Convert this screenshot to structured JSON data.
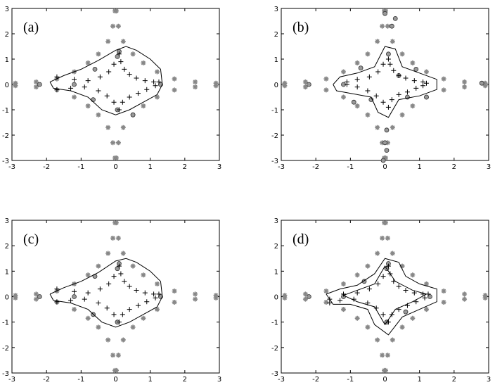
{
  "chart_data": [
    {
      "type": "scatter",
      "label": "(a)",
      "xlim": [
        -3,
        3
      ],
      "ylim": [
        -3,
        3
      ],
      "xticks": [
        -3,
        -2,
        -1,
        0,
        1,
        2,
        3
      ],
      "yticks": [
        -3,
        -2,
        -1,
        0,
        1,
        2,
        3
      ],
      "series": [
        {
          "marker": "star",
          "color": "#888888",
          "x": [
            2.9,
            2.3,
            1.7,
            1.2,
            0.8,
            0.5,
            0.22,
            0.08,
            0.02,
            -2.9,
            -2.3,
            -1.7,
            -1.2,
            -0.8,
            -0.5,
            -0.22,
            -0.08,
            -0.02,
            -2.9,
            -2.3,
            -1.7,
            -1.2,
            -0.8,
            -0.5,
            -0.22,
            -0.08,
            -0.02,
            2.9,
            2.3,
            1.7,
            1.2,
            0.8,
            0.5,
            0.22,
            0.08,
            0.02
          ],
          "y": [
            0.05,
            0.1,
            0.22,
            0.5,
            0.85,
            1.2,
            1.7,
            2.3,
            2.9,
            0.05,
            0.1,
            0.22,
            0.5,
            0.85,
            1.2,
            1.7,
            2.3,
            2.9,
            -0.05,
            -0.1,
            -0.22,
            -0.5,
            -0.85,
            -1.2,
            -1.7,
            -2.3,
            -2.9,
            -0.05,
            -0.1,
            -0.22,
            -0.5,
            -0.85,
            -1.2,
            -1.7,
            -2.3,
            -2.9
          ]
        },
        {
          "marker": "circle",
          "color": "#999999",
          "x": [
            0.1,
            0.05,
            -1.2,
            -2.2,
            0.05,
            0.5,
            1.3,
            -0.6,
            -0.65
          ],
          "y": [
            1.3,
            1.1,
            0,
            0,
            -1.0,
            -1.2,
            0,
            0.6,
            -0.6
          ]
        },
        {
          "marker": "plus",
          "color": "#000000",
          "x": [
            0.1,
            0.15,
            0.25,
            0.4,
            0.6,
            0.85,
            1.1,
            1.25,
            0.1,
            0.2,
            0.4,
            0.65,
            0.9,
            1.15,
            -0.05,
            -0.2,
            -0.45,
            -0.8,
            -1.2,
            -1.7,
            -0.05,
            -0.25,
            -0.5,
            -0.9,
            -1.3,
            -1.7
          ],
          "y": [
            1.2,
            0.9,
            0.6,
            0.4,
            0.25,
            0.15,
            0.1,
            0.1,
            -1.0,
            -0.7,
            -0.5,
            -0.35,
            -0.2,
            -0.05,
            0.8,
            0.5,
            0.3,
            0.15,
            0.2,
            0.3,
            -0.7,
            -0.45,
            -0.25,
            -0.1,
            -0.15,
            -0.2
          ]
        },
        {
          "marker": "line",
          "color": "#000000",
          "x": [
            -1.9,
            -1.5,
            -1.0,
            -0.5,
            0,
            0.3,
            0.6,
            1.0,
            1.3,
            1.35,
            1.2,
            0.8,
            0.4,
            0,
            -0.4,
            -0.8,
            -1.3,
            -1.8,
            -1.9
          ],
          "y": [
            0.1,
            0.35,
            0.6,
            0.95,
            1.35,
            1.5,
            1.35,
            1.0,
            0.6,
            0,
            -0.4,
            -0.7,
            -1.0,
            -1.2,
            -1.0,
            -0.5,
            -0.25,
            -0.15,
            0.1
          ]
        }
      ]
    },
    {
      "type": "scatter",
      "label": "(b)",
      "xlim": [
        -3,
        3
      ],
      "ylim": [
        -3,
        3
      ],
      "xticks": [
        -3,
        -2,
        -1,
        0,
        1,
        2,
        3
      ],
      "yticks": [
        -3,
        -2,
        -1,
        0,
        1,
        2,
        3
      ],
      "series": [
        {
          "marker": "star",
          "color": "#888888",
          "x": [
            2.9,
            2.3,
            1.7,
            1.2,
            0.8,
            0.5,
            0.22,
            0.08,
            0.02,
            -2.9,
            -2.3,
            -1.7,
            -1.2,
            -0.8,
            -0.5,
            -0.22,
            -0.08,
            -0.02,
            -2.9,
            -2.3,
            -1.7,
            -1.2,
            -0.8,
            -0.5,
            -0.22,
            -0.08,
            -0.02,
            2.9,
            2.3,
            1.7,
            1.2,
            0.8,
            0.5,
            0.22,
            0.08,
            0.02
          ],
          "y": [
            0.05,
            0.1,
            0.22,
            0.5,
            0.85,
            1.2,
            1.7,
            2.3,
            2.9,
            0.05,
            0.1,
            0.22,
            0.5,
            0.85,
            1.2,
            1.7,
            2.3,
            2.9,
            -0.05,
            -0.1,
            -0.22,
            -0.5,
            -0.85,
            -1.2,
            -1.7,
            -2.3,
            -2.9,
            -0.05,
            -0.1,
            -0.22,
            -0.5,
            -0.85,
            -1.2,
            -1.7,
            -2.3,
            -2.9
          ]
        },
        {
          "marker": "circle",
          "color": "#999999",
          "x": [
            0,
            0.3,
            0.2,
            -0.7,
            -0.9,
            -1.2,
            -2.2,
            2.8,
            0.05,
            0,
            0.05,
            -0.05,
            0.9,
            1.2,
            0.65,
            0.4,
            0.1,
            -0.4
          ],
          "y": [
            2.8,
            2.6,
            2.3,
            0.65,
            -0.7,
            0,
            0,
            0.05,
            -1.8,
            -2.3,
            -2.6,
            -3.0,
            0.6,
            -0.5,
            -0.5,
            0.35,
            1.2,
            -0.6
          ]
        },
        {
          "marker": "plus",
          "color": "#000000",
          "x": [
            0.1,
            0.15,
            0.25,
            0.4,
            0.6,
            0.85,
            1.1,
            1.2,
            0.1,
            0.2,
            0.4,
            0.65,
            0.9,
            1.1,
            -0.05,
            -0.2,
            -0.45,
            -0.8,
            -1.1,
            -0.05,
            -0.25,
            -0.5,
            -0.8,
            -1.1
          ],
          "y": [
            1.0,
            0.8,
            0.55,
            0.35,
            0.25,
            0.15,
            0.1,
            0.05,
            -0.9,
            -0.6,
            -0.4,
            -0.3,
            -0.15,
            -0.05,
            0.8,
            0.5,
            0.3,
            0.2,
            0.1,
            -0.7,
            -0.45,
            -0.25,
            -0.1,
            0
          ]
        },
        {
          "marker": "line",
          "color": "#000000",
          "x": [
            -1.5,
            -1.3,
            -0.8,
            -0.3,
            0,
            0.3,
            0.5,
            1.0,
            1.5,
            1.5,
            1.0,
            0.4,
            0.1,
            -0.2,
            -0.4,
            -1.0,
            -1.4,
            -1.5
          ],
          "y": [
            0,
            0.3,
            0.45,
            0.7,
            1.5,
            1.4,
            0.7,
            0.45,
            0.2,
            -0.2,
            -0.45,
            -0.6,
            -1.3,
            -1.1,
            -0.5,
            -0.35,
            -0.25,
            0
          ]
        }
      ]
    },
    {
      "type": "scatter",
      "label": "(c)",
      "xlim": [
        -3,
        3
      ],
      "ylim": [
        -3,
        3
      ],
      "xticks": [
        -3,
        -2,
        -1,
        0,
        1,
        2,
        3
      ],
      "yticks": [
        -3,
        -2,
        -1,
        0,
        1,
        2,
        3
      ],
      "series": [
        {
          "marker": "star",
          "color": "#888888",
          "x": [
            2.9,
            2.3,
            1.7,
            1.2,
            0.8,
            0.5,
            0.22,
            0.08,
            0.02,
            -2.9,
            -2.3,
            -1.7,
            -1.2,
            -0.8,
            -0.5,
            -0.22,
            -0.08,
            -0.02,
            -2.9,
            -2.3,
            -1.7,
            -1.2,
            -0.8,
            -0.5,
            -0.22,
            -0.08,
            -0.02,
            2.9,
            2.3,
            1.7,
            1.2,
            0.8,
            0.5,
            0.22,
            0.08,
            0.02
          ],
          "y": [
            0.05,
            0.1,
            0.22,
            0.5,
            0.85,
            1.2,
            1.7,
            2.3,
            2.9,
            0.05,
            0.1,
            0.22,
            0.5,
            0.85,
            1.2,
            1.7,
            2.3,
            2.9,
            -0.05,
            -0.1,
            -0.22,
            -0.5,
            -0.85,
            -1.2,
            -1.7,
            -2.3,
            -2.9,
            -0.05,
            -0.1,
            -0.22,
            -0.5,
            -0.85,
            -1.2,
            -1.7,
            -2.3,
            -2.9
          ]
        },
        {
          "marker": "circle",
          "color": "#999999",
          "x": [
            0.1,
            0.05,
            -1.2,
            -2.2,
            0.05,
            1.3,
            -0.6,
            -0.65
          ],
          "y": [
            1.3,
            1.1,
            0,
            0,
            -1.0,
            0,
            0.8,
            -0.7
          ]
        },
        {
          "marker": "plus",
          "color": "#000000",
          "x": [
            0.1,
            0.15,
            0.25,
            0.4,
            0.6,
            0.85,
            1.1,
            1.25,
            0.1,
            0.2,
            0.4,
            0.65,
            0.9,
            1.15,
            -0.05,
            -0.2,
            -0.45,
            -0.8,
            -1.2,
            -1.7,
            -0.05,
            -0.25,
            -0.5,
            -0.9,
            -1.3,
            -1.7
          ],
          "y": [
            1.2,
            0.9,
            0.6,
            0.4,
            0.25,
            0.15,
            0.1,
            0.1,
            -1.0,
            -0.7,
            -0.5,
            -0.35,
            -0.2,
            -0.05,
            0.8,
            0.5,
            0.3,
            0.15,
            0.2,
            0.3,
            -0.7,
            -0.45,
            -0.25,
            -0.1,
            -0.15,
            -0.2
          ]
        },
        {
          "marker": "line",
          "color": "#000000",
          "x": [
            -1.9,
            -1.5,
            -1.0,
            -0.5,
            0,
            0.3,
            0.6,
            1.0,
            1.3,
            1.35,
            1.2,
            0.8,
            0.4,
            0,
            -0.4,
            -0.8,
            -1.3,
            -1.8,
            -1.9
          ],
          "y": [
            0.1,
            0.35,
            0.6,
            0.95,
            1.4,
            1.5,
            1.35,
            1.0,
            0.6,
            0,
            -0.4,
            -0.7,
            -1.0,
            -1.2,
            -1.0,
            -0.5,
            -0.25,
            -0.15,
            0.1
          ]
        }
      ]
    },
    {
      "type": "scatter",
      "label": "(d)",
      "xlim": [
        -3,
        3
      ],
      "ylim": [
        -3,
        3
      ],
      "xticks": [
        -3,
        -2,
        -1,
        0,
        1,
        2,
        3
      ],
      "yticks": [
        -3,
        -2,
        -1,
        0,
        1,
        2,
        3
      ],
      "series": [
        {
          "marker": "star",
          "color": "#888888",
          "x": [
            2.9,
            2.3,
            1.7,
            1.2,
            0.8,
            0.5,
            0.22,
            0.08,
            0.02,
            -2.9,
            -2.3,
            -1.7,
            -1.2,
            -0.8,
            -0.5,
            -0.22,
            -0.08,
            -0.02,
            -2.9,
            -2.3,
            -1.7,
            -1.2,
            -0.8,
            -0.5,
            -0.22,
            -0.08,
            -0.02,
            2.9,
            2.3,
            1.7,
            1.2,
            0.8,
            0.5,
            0.22,
            0.08,
            0.02
          ],
          "y": [
            0.05,
            0.1,
            0.22,
            0.5,
            0.85,
            1.2,
            1.7,
            2.3,
            2.9,
            0.05,
            0.1,
            0.22,
            0.5,
            0.85,
            1.2,
            1.7,
            2.3,
            2.9,
            -0.05,
            -0.1,
            -0.22,
            -0.5,
            -0.85,
            -1.2,
            -1.7,
            -2.3,
            -2.9,
            -0.05,
            -0.1,
            -0.22,
            -0.5,
            -0.85,
            -1.2,
            -1.7,
            -2.3,
            -2.9
          ]
        },
        {
          "marker": "circle",
          "color": "#999999",
          "x": [
            0.1,
            0.05,
            -1.2,
            -2.2,
            0.05,
            1.3,
            -0.6,
            0.6
          ],
          "y": [
            1.3,
            1.1,
            0,
            0,
            -1.0,
            0,
            0.6,
            -0.6
          ]
        },
        {
          "marker": "plus",
          "color": "#000000",
          "x": [
            0.1,
            0.15,
            0.25,
            0.4,
            0.6,
            0.85,
            1.1,
            1.25,
            0.1,
            0.2,
            0.4,
            0.65,
            0.9,
            1.15,
            -0.05,
            -0.2,
            -0.45,
            -0.8,
            -1.2,
            -1.6,
            -0.05,
            -0.25,
            -0.5,
            -0.9,
            -1.3,
            -1.6
          ],
          "y": [
            1.2,
            0.9,
            0.6,
            0.4,
            0.25,
            0.15,
            0.1,
            0.1,
            -1.0,
            -0.7,
            -0.5,
            -0.35,
            -0.2,
            -0.05,
            0.8,
            0.5,
            0.3,
            0.15,
            0.1,
            -0.1,
            -0.7,
            -0.45,
            -0.25,
            -0.1,
            -0.15,
            -0.25
          ]
        },
        {
          "marker": "line",
          "color": "#000000",
          "x": [
            -1.7,
            -1.3,
            -0.8,
            -0.3,
            0,
            0.4,
            0.6,
            1.0,
            1.5,
            1.5,
            1.0,
            0.5,
            0.1,
            -0.3,
            -0.5,
            -1.0,
            -1.5,
            -1.7
          ],
          "y": [
            0.1,
            0.3,
            0.45,
            0.9,
            1.5,
            1.35,
            0.8,
            0.5,
            0.3,
            -0.2,
            -0.5,
            -0.8,
            -1.5,
            -1.1,
            -0.5,
            -0.3,
            -0.3,
            0.1
          ]
        },
        {
          "marker": "line",
          "color": "#000000",
          "x": [
            -1.2,
            -0.8,
            -0.3,
            0,
            0.3,
            0.8,
            1.2,
            0.8,
            0.3,
            0,
            -0.3,
            -0.8,
            -1.2
          ],
          "y": [
            0.05,
            0.25,
            0.5,
            1.2,
            0.6,
            0.25,
            0.1,
            -0.2,
            -0.5,
            -1.1,
            -0.4,
            -0.2,
            0.05
          ]
        }
      ]
    }
  ]
}
